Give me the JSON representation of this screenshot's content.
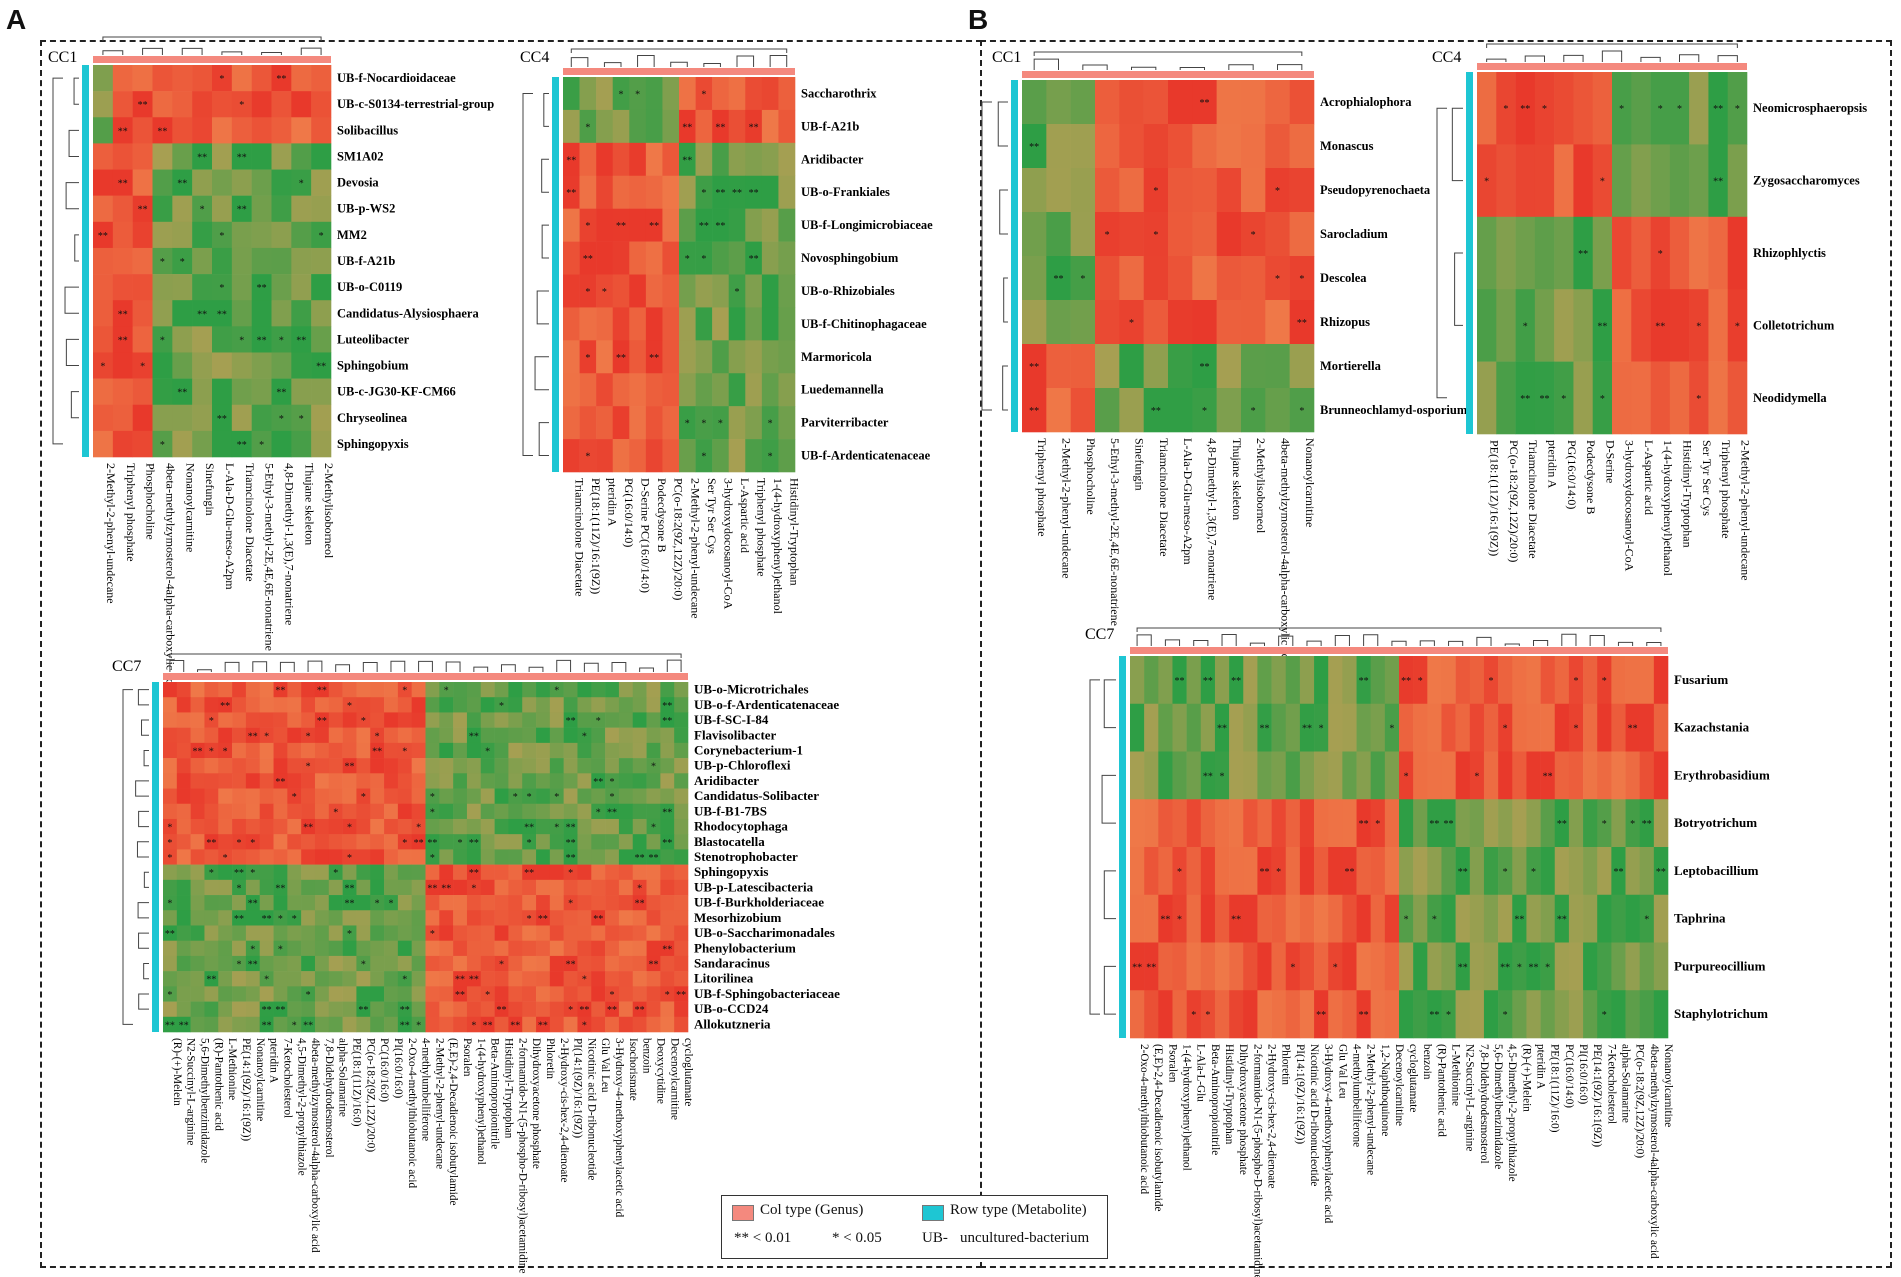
{
  "panels": [
    {
      "letter": "A",
      "clusters": [
        {
          "label": "CC1",
          "rows": [
            "UB-f-Nocardioidaceae",
            "UB-c-S0134-terrestrial-group",
            "Solibacillus",
            "SM1A02",
            "Devosia",
            "UB-p-WS2",
            "MM2",
            "UB-f-A21b",
            "UB-o-C0119",
            "Candidatus-Alysiosphaera",
            "Luteolibacter",
            "Sphingobium",
            "UB-c-JG30-KF-CM66",
            "Chryseolinea",
            "Sphingopyxis"
          ],
          "cols": [
            "2-Methyl-2-phenyl-undecane",
            "Triphenyl phosphate",
            "Phosphocholine",
            "4beta-methylzymosterol-4alpha-carboxylic acid",
            "Nonanoylcarnitine",
            "Sinefungin",
            "L-Ala-D-Glu-meso-A2pm",
            "Triamcinolone Diacetate",
            "5-Ethyl-3-methyl-2E,4E,6E-nonatriene",
            "4,8-Dimethyl-1,3(E),7-nonatriene",
            "Thujane skeleton",
            "2-Methylisoborneol"
          ]
        },
        {
          "label": "CC4",
          "rows": [
            "Saccharothrix",
            "UB-f-A21b",
            "Aridibacter",
            "UB-o-Frankiales",
            "UB-f-Longimicrobiaceae",
            "Novosphingobium",
            "UB-o-Rhizobiales",
            "UB-f-Chitinophagaceae",
            "Marmoricola",
            "Luedemannella",
            "Parviterribacter",
            "UB-f-Ardenticatenaceae"
          ],
          "cols": [
            "Triamcinolone Diacetate",
            "PE(18:1(11Z)/16:1(9Z))",
            "pteridin A",
            "PG(16:0/14:0)",
            "D-Serine PC(16:0/14:0)",
            "Podecdysone B",
            "PC(o-18:2(9Z,12Z)/20:0)",
            "2-Methyl-2-phenyl-undecane",
            "Ser Tyr Ser Cys",
            "3-hydroxydocosanoyl-CoA",
            "L-Aspartic acid",
            "Triphenyl phosphate",
            "1-(4-hydroxyphenyl)ethanol",
            "Histidinyl-Tryptophan"
          ]
        },
        {
          "label": "CC7",
          "rows": [
            "UB-o-Microtrichales",
            "UB-o-f-Ardenticatenaceae",
            "UB-f-SC-I-84",
            "Flavisolibacter",
            "Corynebacterium-1",
            "UB-p-Chloroflexi",
            "Aridibacter",
            "Candidatus-Solibacter",
            "UB-f-B1-7BS",
            "Rhodocytophaga",
            "Blastocatella",
            "Stenotrophobacter",
            "Sphingopyxis",
            "UB-p-Latescibacteria",
            "UB-f-Burkholderiaceae",
            "Mesorhizobium",
            "UB-o-Saccharimonadales",
            "Phenylobacterium",
            "Sandaracinus",
            "Litorilinea",
            "UB-f-Sphingobacteriaceae",
            "UB-o-CCD24",
            "Allokutzneria"
          ],
          "cols": [
            "(R)-(+)-Melein",
            "N2-Succinyl-L-arginine",
            "5,6-Dimethylbenzimidazole",
            "(R)-Pantothenic acid",
            "L-Methionine",
            "PE(14:1(9Z)/16:1(9Z))",
            "Nonanoylcarnitine",
            "pteridin A",
            "7-Ketocholesterol",
            "4,5-Dimethyl-2-propylthiazole",
            "4beta-methylzymosterol-4alpha-carboxylic acid",
            "7,8-Didehydrodesmosterol",
            "alpha-Solamarine",
            "PE(18:1(11Z)/16:0)",
            "PC(o-18:2(9Z,12Z)/20:0)",
            "PC(16:0/16:0)",
            "PI(16:0/16:0)",
            "2-Oxo-4-methylthiobutanoic acid",
            "4-methylumbelliferone",
            "2-Methyl-2-phenyl-undecane",
            "(E,E)-2,4-Decadienoic isobutylamide",
            "Psoralen",
            "1-(4-hydroxyphenyl)ethanol",
            "Beta-Aminopropionitrile",
            "Histidinyl-Tryptophan",
            "2-formamido-N1-(5-phospho-D-ribosyl)acetamidine",
            "Dihydroxyacetone phosphate",
            "Phloretin",
            "2-Hydroxy-cis-hex-2,4-dienoate",
            "PI(14:1(9Z)/16:1(9Z))",
            "Nicotinic acid D-ribonucleotide",
            "Glu Val Leu",
            "3-Hydroxy-4-methoxyphenylacetic acid",
            "Isochorismate",
            "benzoin",
            "Deoxycytidine",
            "Decenoylcarnitine",
            "cycloglutamate"
          ]
        }
      ]
    },
    {
      "letter": "B",
      "clusters": [
        {
          "label": "CC1",
          "rows": [
            "Acrophialophora",
            "Monascus",
            "Pseudopyrenochaeta",
            "Sarocladium",
            "Descolea",
            "Rhizopus",
            "Mortierella",
            "Brunneochlamyd-osporium"
          ],
          "cols": [
            "Triphenyl phosphate",
            "2-Methyl-2-phenyl-undecane",
            "Phosphocholine",
            "5-Ethyl-3-methyl-2E,4E,6E-nonatriene",
            "Sinefungin",
            "Triamcinolone Diacetate",
            "L-Ala-D-Glu-meso-A2pm",
            "4,8-Dimethyl-1,3(E),7-nonatriene",
            "Thujane skeleton",
            "2-Methylisoborneol",
            "4beta-methylzymosterol-4alpha-carboxylic acid",
            "Nonanoylcarnitine"
          ]
        },
        {
          "label": "CC4",
          "rows": [
            "Neomicrosphaeropsis",
            "Zygosaccharomyces",
            "Rhizophlyctis",
            "Colletotrichum",
            "Neodidymella"
          ],
          "cols": [
            "PE(18:1(11Z)/16:1(9Z))",
            "PC(o-18:2(9Z,12Z)/20:0)",
            "Triamcinolone Diacetate",
            "pteridin A",
            "PG(16:0/14:0)",
            "Podecdysone B",
            "D-Serine",
            "3-hydroxydocosanoyl-CoA",
            "L-Aspartic acid",
            "1-(4-hydroxyphenyl)ethanol",
            "Histidinyl-Tryptophan",
            "Ser Tyr Ser Cys",
            "Triphenyl phosphate",
            "2-Methyl-2-phenyl-undecane"
          ]
        },
        {
          "label": "CC7",
          "rows": [
            "Fusarium",
            "Kazachstania",
            "Erythrobasidium",
            "Botryotrichum",
            "Leptobacillium",
            "Taphrina",
            "Purpureocillium",
            "Staphylotrichum"
          ],
          "cols": [
            "2-Oxo-4-methylthiobutanoic acid",
            "(E,E)-2,4-Decadienoic isobutylamide",
            "Psoralen",
            "1-(4-hydroxyphenyl)ethanol",
            "L-Ala-L-Glu",
            "Beta-Aminopropionitrile",
            "Histidinyl-Tryptophan",
            "Dihydroxyacetone phosphate",
            "2-formamido-N1-(5-phospho-D-ribosyl)acetamidine",
            "2-Hydroxy-cis-hex-2,4-dienoate",
            "Phloretin",
            "PI(14:1(9Z)/16:1(9Z))",
            "Nicotinic acid D-ribonucleotide",
            "3-Hydroxy-4-methoxyphenylacetic acid",
            "Glu Val Leu",
            "4-methylumbelliferone",
            "2-Methyl-2-phenyl-undecane",
            "1,2-Naphthoquinone",
            "Decenoylcarnitine",
            "cycloglutamate",
            "benzoin",
            "(R)-Pantothenic acid",
            "L-Methionine",
            "N2-Succinyl-L-arginine",
            "7,8-Didehydrodesmosterol",
            "5,6-Dimethylbenzimidazole",
            "4,5-Dimethyl-2-propylthiazole",
            "(R)-(+)-Melein",
            "pteridin A",
            "PE(18:1(11Z)/16:0)",
            "PC(16:0/14:0)",
            "PI(16:0/16:0)",
            "PE(14:1(9Z)/16:1(9Z))",
            "7-Ketocholesterol",
            "alpha-Solamarine",
            "PC(o-18:2(9Z,12Z)/20:0)",
            "4beta-methylzymosterol-4alpha-carboxylic acid",
            "Nonanoylcarnitine"
          ]
        }
      ]
    }
  ],
  "legend": {
    "col_type": "Col type (Genus)",
    "row_type": "Row type (Metabolite)",
    "sig2": "** < 0.01",
    "sig1": "* < 0.05",
    "ub_prefix": "UB-",
    "ub_meaning": "uncultured-bacterium"
  },
  "colors": {
    "positive": "#e8392b",
    "mid": "#f3a05a",
    "negative": "#2e9e45",
    "col_bar": "#f4897e",
    "row_bar": "#1ec6d3"
  },
  "chart_data": {
    "type": "heatmap",
    "title": "",
    "value_scale": "correlation (red = positive, green = negative)",
    "color_legend": [
      "Col type (Genus)",
      "Row type (Metabolite)"
    ],
    "significance": {
      "**": "< 0.01",
      "*": "< 0.05"
    },
    "blocks": [
      {
        "panel": "A",
        "cluster": "CC1",
        "pattern": "top 3 rows red across most metabolites; remaining rows red for left 3 metabolites and green for the rest"
      },
      {
        "panel": "A",
        "cluster": "CC4",
        "pattern": "top 2 rows green left / red right; remaining rows red left / green right"
      },
      {
        "panel": "A",
        "cluster": "CC7",
        "pattern": "top 12 rows red left half / green right half; bottom 11 rows green left half / red right half"
      },
      {
        "panel": "B",
        "cluster": "CC1",
        "pattern": "top 6 rows green for first 3 metabolites, red for rest; bottom 2 rows reversed"
      },
      {
        "panel": "B",
        "cluster": "CC4",
        "pattern": "top 2 rows red left / green right; bottom 3 rows green left / red right"
      },
      {
        "panel": "B",
        "cluster": "CC7",
        "pattern": "top 3 rows green left half / red right half; bottom 5 rows red left half / green right half"
      }
    ]
  }
}
